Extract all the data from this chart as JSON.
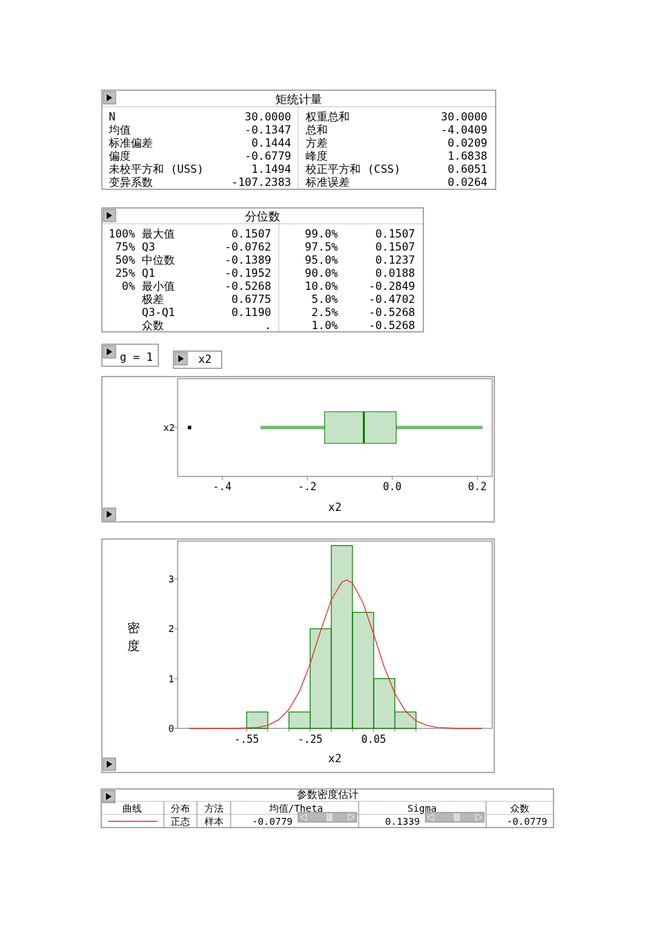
{
  "chart_data": [
    {
      "type": "other",
      "title": "矩统计量",
      "annotations": [
        "N",
        "30.0000",
        "权重总和",
        "30.0000",
        "均值",
        "-0.1347",
        "总和",
        "-4.0409",
        "标准偏差",
        "0.1444",
        "方差",
        "0.0209",
        "偏度",
        "-0.6779",
        "峰度",
        "1.6838",
        "未校平方和 (USS)",
        "1.1494",
        "校正平方和 (CSS)",
        "0.6051",
        "变异系数",
        "-107.2383",
        "标准误差",
        "0.0264"
      ]
    },
    {
      "type": "other",
      "title": "分位数",
      "annotations": [
        "100% 最大值",
        "0.1507",
        "99.0%",
        "0.1507",
        "75% Q3",
        "-0.0762",
        "97.5%",
        "0.1507",
        "50% 中位数",
        "-0.1389",
        "95.0%",
        "0.1237",
        "25% Q1",
        "-0.1952",
        "90.0%",
        "0.0188",
        "0% 最小值",
        "-0.5268",
        "10.0%",
        "-0.2849",
        "极差",
        "0.6775",
        "5.0%",
        "-0.4702",
        "Q3-Q1",
        "0.1190",
        "2.5%",
        "-0.5268",
        "众数",
        ".",
        "1.0%",
        "-0.5268"
      ]
    },
    {
      "type": "box",
      "orientation": "horizontal",
      "categories": [
        "x2"
      ],
      "color": "#008000",
      "boxes": [
        {
          "low": -0.31,
          "q1": -0.159,
          "median": -0.067,
          "q3": 0.009,
          "high": 0.212,
          "outliers": [
            -0.477
          ]
        }
      ],
      "xlim": [
        -0.505,
        0.235
      ],
      "xticks": [
        {
          "value": -0.4,
          "label": "-.4"
        },
        {
          "value": -0.2,
          "label": "-.2"
        },
        {
          "value": 0,
          "label": "0.0"
        },
        0.2
      ],
      "xlabel": "x2",
      "annotations": [
        "g = 1",
        "x2"
      ]
    },
    {
      "type": "histogram",
      "bins": [
        -0.55,
        -0.45,
        -0.35,
        -0.25,
        -0.15,
        -0.05,
        0.05,
        0.15,
        0.25
      ],
      "xlim": [
        -0.876,
        0.61
      ],
      "ylim": [
        0,
        3.76
      ],
      "xticks": [
        {
          "value": -0.55,
          "label": "-.55"
        },
        {
          "value": -0.45,
          "label": null
        },
        {
          "value": -0.35,
          "label": null
        },
        {
          "value": -0.25,
          "label": "-.25"
        },
        {
          "value": -0.15,
          "label": null
        },
        {
          "value": -0.05,
          "label": null
        },
        0.05,
        {
          "value": 0.15,
          "label": null
        },
        {
          "value": 0.25,
          "label": null
        }
      ],
      "yticks": [
        0,
        1,
        2,
        3
      ],
      "xlabel": "x2",
      "ylabel": "密度",
      "series": [
        {
          "type": "histogram",
          "color": "#008000",
          "values": [
            0.33,
            0,
            0.33,
            2.0,
            3.67,
            2.33,
            1.0,
            0.33
          ]
        },
        {
          "type": "line",
          "color": "#e8302a",
          "x": [
            -0.82,
            -0.7,
            -0.6,
            -0.5,
            -0.45,
            -0.4,
            -0.35,
            -0.3,
            -0.25,
            -0.2,
            -0.15,
            -0.1,
            -0.0779,
            -0.05,
            0,
            0.05,
            0.1,
            0.15,
            0.2,
            0.25,
            0.3,
            0.35,
            0.45,
            0.56
          ],
          "values": [
            0,
            0,
            0,
            0.02,
            0.06,
            0.17,
            0.38,
            0.75,
            1.3,
            1.97,
            2.58,
            2.94,
            2.98,
            2.92,
            2.52,
            1.89,
            1.23,
            0.7,
            0.35,
            0.15,
            0.06,
            0.02,
            0,
            0
          ]
        }
      ]
    },
    {
      "type": "other",
      "title": "参数密度估计",
      "color": "#e8302a",
      "annotations": [
        "曲线",
        "分布",
        "方法",
        "均值/Theta",
        "Sigma",
        "众数",
        null,
        "正态",
        "样本",
        "-0.0779",
        "0.1339",
        "-0.0779"
      ]
    }
  ]
}
